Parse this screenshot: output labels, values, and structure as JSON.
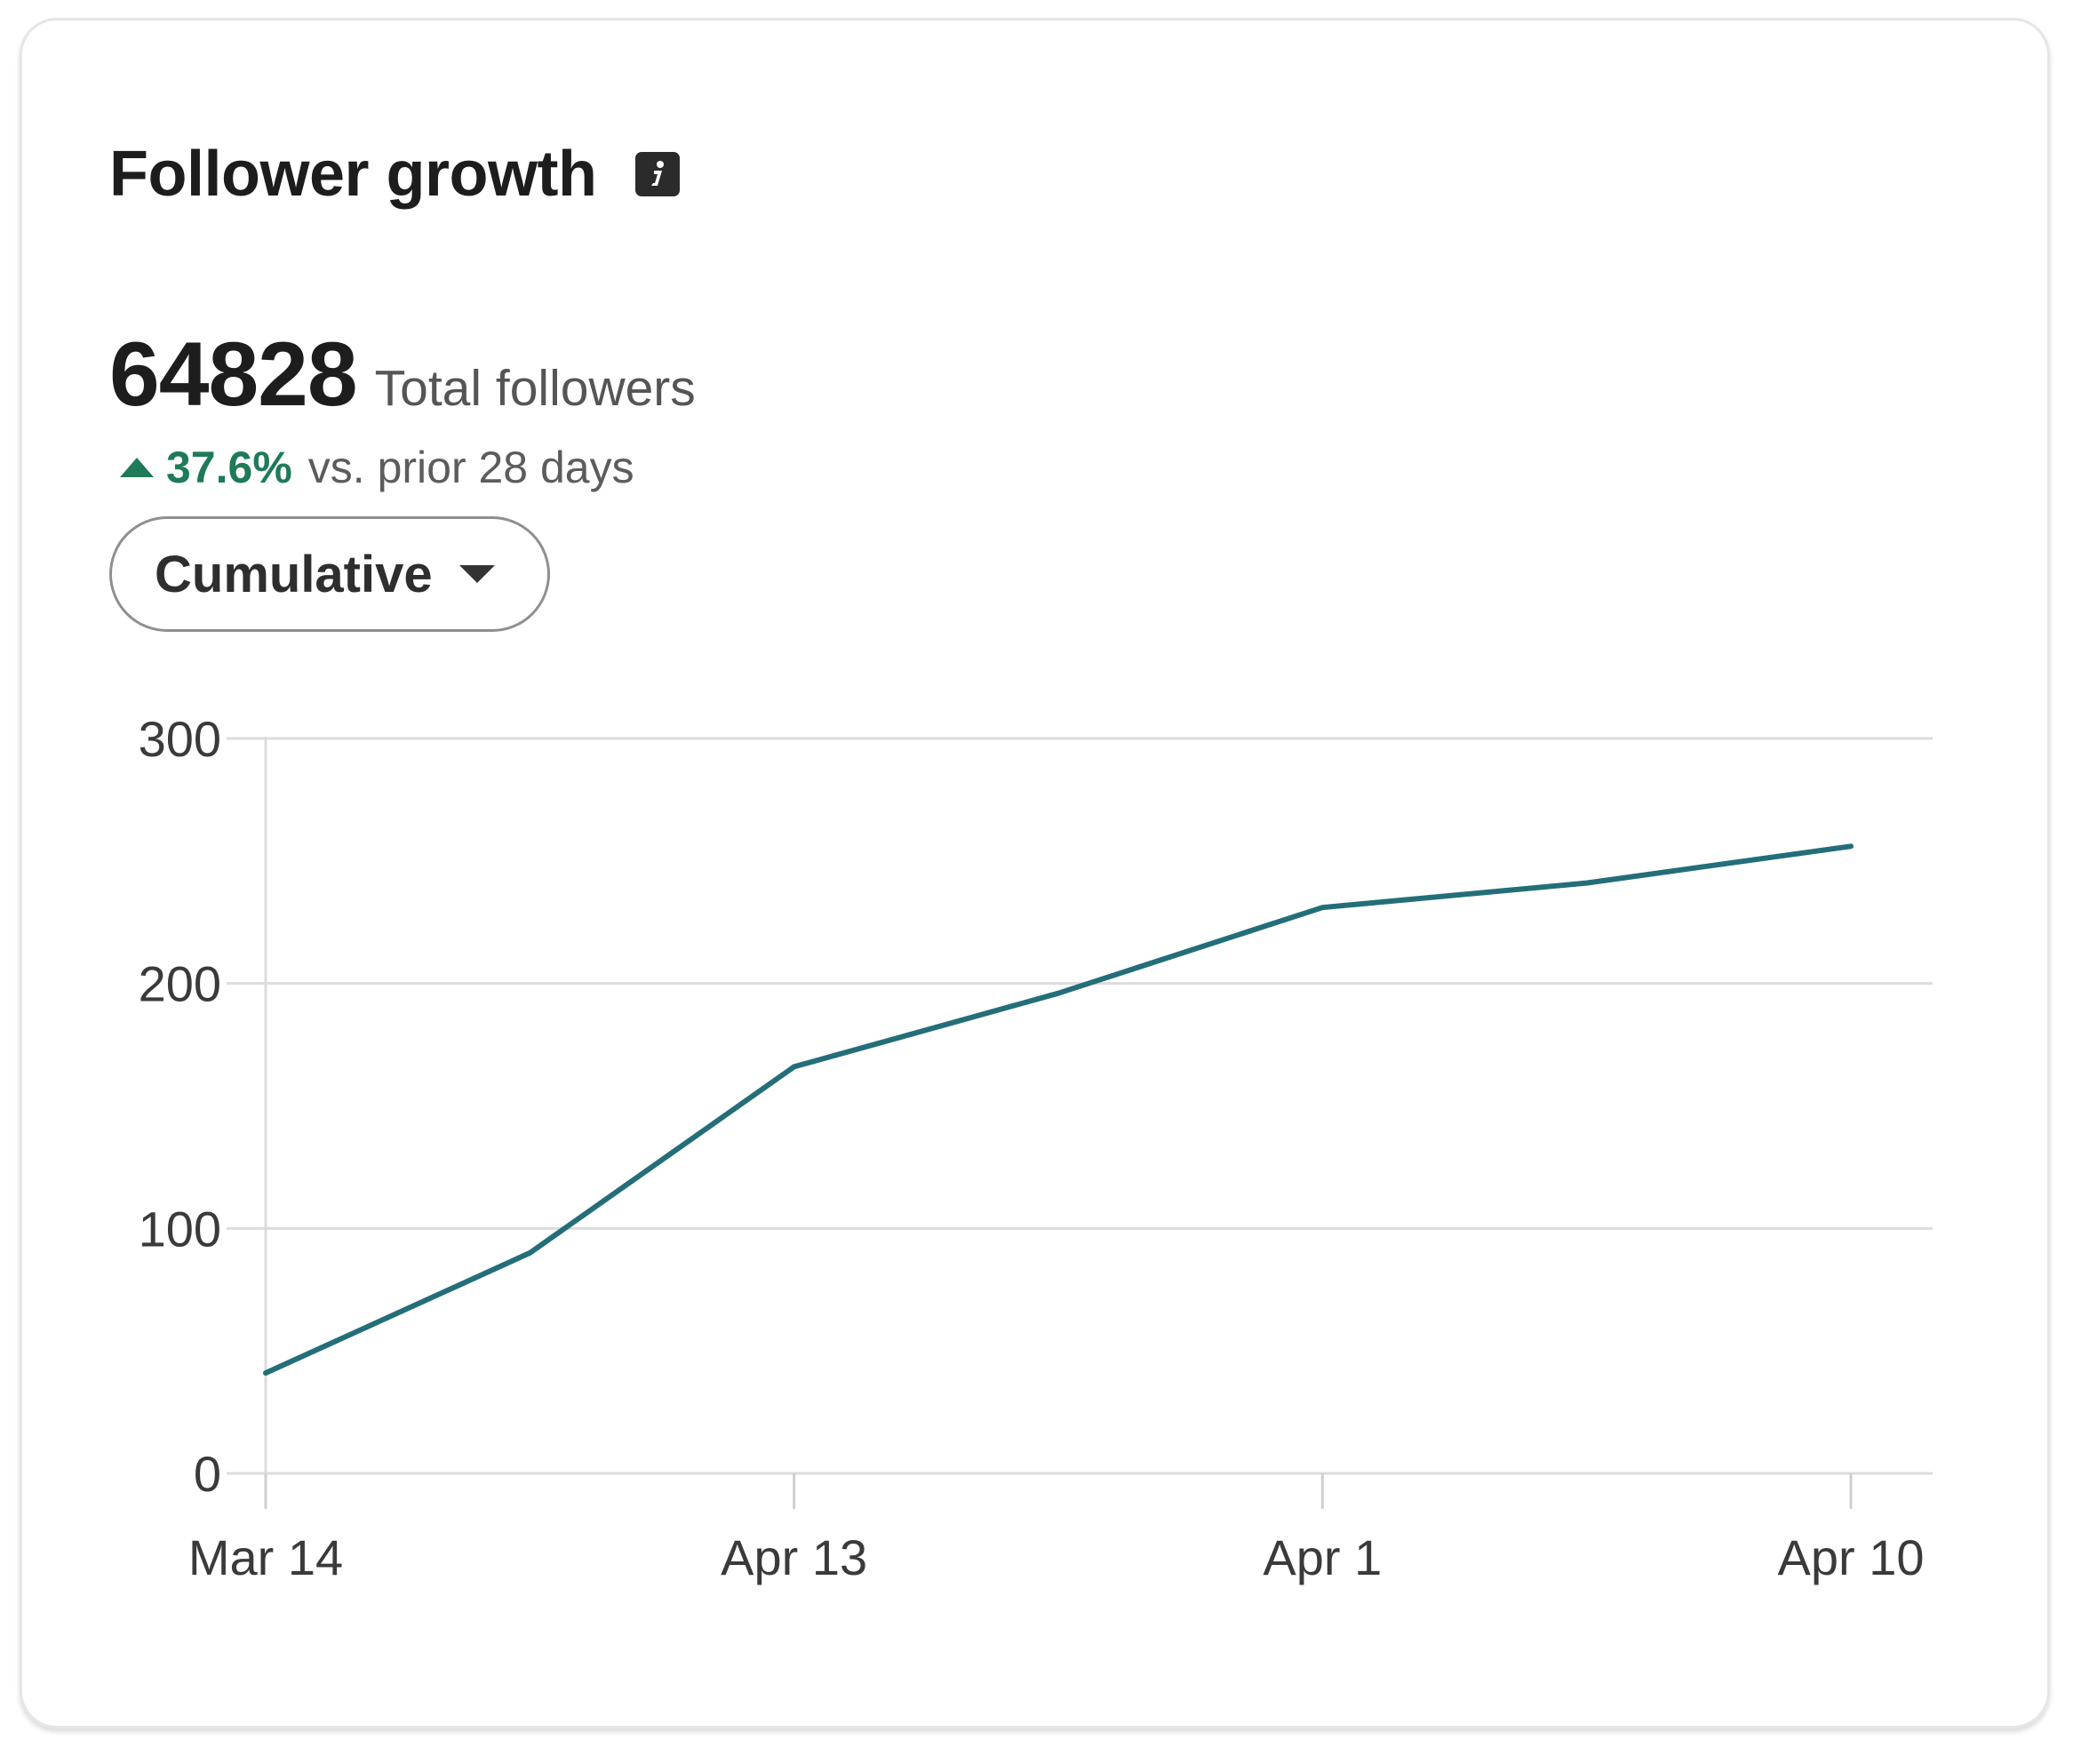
{
  "header": {
    "title": "Follower growth",
    "info_icon": "info-icon"
  },
  "summary": {
    "total_value": "64828",
    "total_label": "Total followers",
    "change_pct": "37.6%",
    "change_label": "vs. prior 28 days",
    "change_direction": "up",
    "change_color": "#1f7a58"
  },
  "dropdown": {
    "selected": "Cumulative"
  },
  "chart_data": {
    "type": "line",
    "title": "",
    "xlabel": "",
    "ylabel": "",
    "ylim": [
      0,
      300
    ],
    "yticks": [
      "0",
      "100",
      "200",
      "300"
    ],
    "xticks": [
      "Mar 14",
      "Apr 13",
      "Apr 1",
      "Apr 10"
    ],
    "grid": true,
    "series": [
      {
        "color": "#236e79",
        "points": [
          {
            "x": 0,
            "y": 41
          },
          {
            "x": 1,
            "y": 90
          },
          {
            "x": 2,
            "y": 166
          },
          {
            "x": 3,
            "y": 196
          },
          {
            "x": 4,
            "y": 231
          },
          {
            "x": 5,
            "y": 241
          },
          {
            "x": 6,
            "y": 256
          }
        ]
      }
    ],
    "xtick_positions": [
      0,
      2,
      4,
      6
    ]
  }
}
